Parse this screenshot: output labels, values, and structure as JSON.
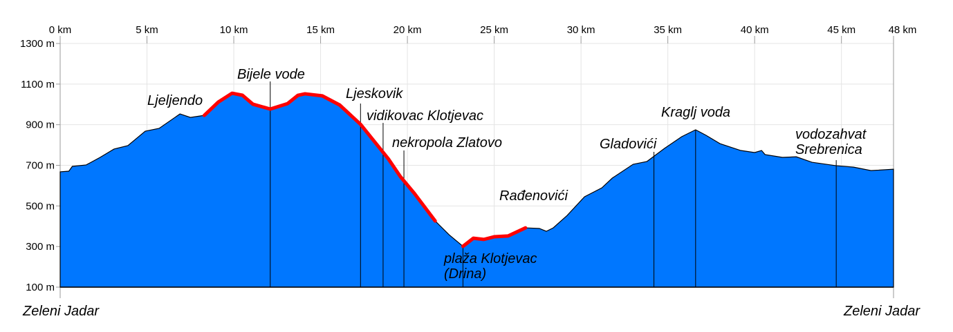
{
  "chart_data": {
    "type": "area",
    "xlim": [
      0,
      48
    ],
    "ylim": [
      100,
      1300
    ],
    "xticks": [
      {
        "value": 0,
        "label": "0 km"
      },
      {
        "value": 5,
        "label": "5 km"
      },
      {
        "value": 10,
        "label": "10 km"
      },
      {
        "value": 15,
        "label": "15 km"
      },
      {
        "value": 20,
        "label": "20 km"
      },
      {
        "value": 25,
        "label": "25 km"
      },
      {
        "value": 30,
        "label": "30 km"
      },
      {
        "value": 35,
        "label": "35 km"
      },
      {
        "value": 40,
        "label": "40 km"
      },
      {
        "value": 45,
        "label": "45 km"
      },
      {
        "value": 48,
        "label": "48 km"
      }
    ],
    "yticks": [
      {
        "value": 100,
        "label": "100 m"
      },
      {
        "value": 300,
        "label": "300 m"
      },
      {
        "value": 500,
        "label": "500 m"
      },
      {
        "value": 700,
        "label": "700 m"
      },
      {
        "value": 900,
        "label": "900 m"
      },
      {
        "value": 1100,
        "label": "1100 m"
      },
      {
        "value": 1300,
        "label": "1300 m"
      }
    ],
    "grid": true,
    "x": [
      0,
      0.5,
      0.7,
      1.5,
      2.3,
      3.1,
      3.9,
      4.9,
      5.7,
      6.9,
      7.5,
      8.3,
      9.1,
      9.9,
      10.5,
      11.1,
      12.1,
      13.1,
      13.7,
      14.1,
      15.1,
      16.1,
      17.3,
      18.1,
      18.9,
      19.6,
      20.4,
      21.6,
      22.4,
      23.2,
      23.8,
      24.4,
      25.0,
      25.8,
      26.8,
      27.6,
      28.0,
      28.4,
      29.2,
      30.2,
      31.2,
      31.8,
      33.0,
      33.8,
      34.8,
      35.8,
      36.6,
      37.2,
      38.0,
      39.2,
      40.0,
      40.4,
      40.6,
      41.6,
      42.4,
      43.3,
      44.7,
      45.7,
      46.7,
      48
    ],
    "series": [
      {
        "color": "#0077ff",
        "values": [
          668,
          671,
          695,
          702,
          739,
          780,
          797,
          868,
          882,
          953,
          936,
          946,
          1011,
          1055,
          1045,
          1001,
          977,
          1004,
          1045,
          1052,
          1042,
          997,
          902,
          817,
          732,
          644,
          562,
          426,
          358,
          301,
          341,
          335,
          348,
          352,
          392,
          389,
          375,
          392,
          453,
          545,
          589,
          637,
          705,
          719,
          783,
          841,
          875,
          848,
          807,
          773,
          763,
          773,
          753,
          739,
          742,
          715,
          698,
          691,
          674,
          681
        ]
      },
      {
        "color": "#ff0000",
        "values": [
          null,
          null,
          null,
          null,
          null,
          null,
          null,
          null,
          null,
          null,
          null,
          946,
          1011,
          1055,
          1045,
          1001,
          977,
          1004,
          1045,
          1052,
          1042,
          997,
          902,
          817,
          732,
          644,
          562,
          426,
          null,
          301,
          341,
          335,
          348,
          352,
          392,
          null,
          null,
          null,
          null,
          null,
          null,
          null,
          null,
          null,
          null,
          null,
          null,
          null,
          null,
          null,
          null,
          null,
          null,
          null,
          null,
          null,
          null,
          null,
          null,
          null
        ]
      }
    ],
    "annotations": [
      {
        "text": [
          "Ljeljendo"
        ]
      },
      {
        "text": [
          "Bijele vode"
        ],
        "x": 12.1
      },
      {
        "text": [
          "Ljeskovik"
        ],
        "x": 17.3
      },
      {
        "text": [
          "vidikovac Klotjevac"
        ],
        "x": 18.6
      },
      {
        "text": [
          "nekropola Zlatovo"
        ],
        "x": 19.8
      },
      {
        "text": [
          "plaža Klotjevac",
          "(Drina)"
        ],
        "x": 23.2
      },
      {
        "text": [
          "Rađenovići"
        ]
      },
      {
        "text": [
          "Gladovići"
        ],
        "x": 34.2
      },
      {
        "text": [
          "Kraglj voda"
        ],
        "x": 36.6
      },
      {
        "text": [
          "vodozahvat",
          "Srebrenica"
        ],
        "x": 44.7
      }
    ],
    "start_label": "Zeleni Jadar",
    "end_label": "Zeleni Jadar"
  }
}
